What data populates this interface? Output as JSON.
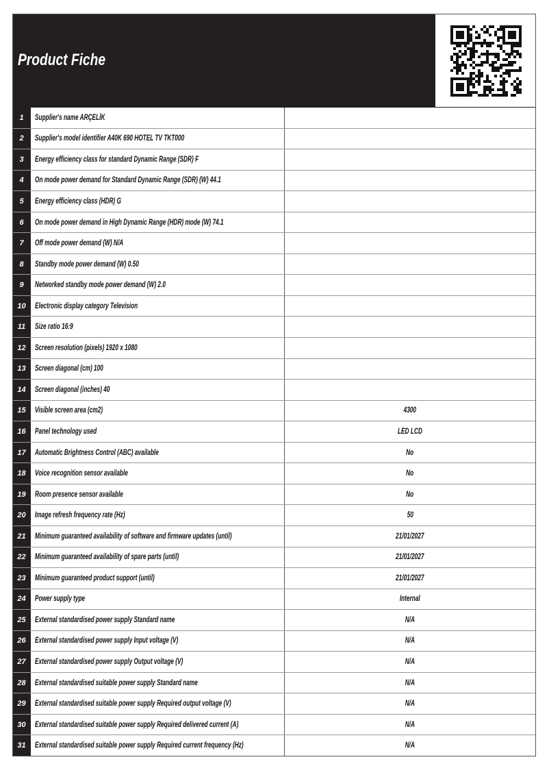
{
  "header": {
    "title": "Product Fiche"
  },
  "table": {
    "rows": [
      [
        "1",
        "Supplier's name  ARÇELİK"
      ],
      [
        "2",
        "Supplier's model identifier A40K 690 HOTEL TV TKT000"
      ],
      [
        "3",
        "Energy efficiency class for standard Dynamic Range (SDR) F"
      ],
      [
        "4",
        "On mode power demand for Standard Dynamic Range (SDR) (W) 44.1"
      ],
      [
        "5",
        "Energy efficiency class (HDR) G"
      ],
      [
        "6",
        "On mode power demand in High Dynamic Range (HDR) mode  (W) 74.1"
      ],
      [
        "7",
        "Off mode power demand (W) N/A"
      ],
      [
        "8",
        "Standby mode power demand  (W) 0.50"
      ],
      [
        "9",
        "Networked standby mode power demand (W) 2.0"
      ],
      [
        "10",
        "Electronic display category Television"
      ],
      [
        "11",
        "Size ratio 16:9"
      ],
      [
        "12",
        "Screen resolution (pixels) 1920 x 1080"
      ],
      [
        "13",
        "Screen diagonal (cm) 100"
      ],
      [
        "14",
        "Screen diagonal (inches) 40"
      ],
      [
        "15",
        "Visible screen area (cm2)",
        "4300"
      ],
      [
        "16",
        "Panel technology used",
        "LED LCD"
      ],
      [
        "17",
        "Automatic Brightness Control (ABC) available",
        "No"
      ],
      [
        "18",
        "Voice recognition sensor available",
        "No"
      ],
      [
        "19",
        "Room presence sensor available",
        "No"
      ],
      [
        "20",
        "Image refresh frequency rate (Hz)",
        "50"
      ],
      [
        "21",
        "Minimum guaranteed availability of software and firmware updates (until)",
        "21/01/2027"
      ],
      [
        "22",
        "Minimum guaranteed availability of spare parts (until)",
        "21/01/2027"
      ],
      [
        "23",
        "Minimum guaranteed product support (until)",
        "21/01/2027"
      ],
      [
        "24",
        "Power supply type",
        "Internal"
      ],
      [
        "25",
        "External standardised power supply Standard name",
        "N/A"
      ],
      [
        "26",
        "External standardised power supply Input voltage (V)",
        "N/A"
      ],
      [
        "27",
        "External standardised power supply Output voltage (V)",
        "N/A"
      ],
      [
        "28",
        "External standardised suitable power supply Standard name",
        "N/A"
      ],
      [
        "29",
        "External standardised suitable power supply Required output voltage (V)",
        "N/A"
      ],
      [
        "30",
        "External standardised suitable power supply Required delivered current (A)",
        "N/A"
      ],
      [
        "31",
        "External standardised suitable power supply Required current frequency (Hz)",
        "N/A"
      ]
    ]
  }
}
